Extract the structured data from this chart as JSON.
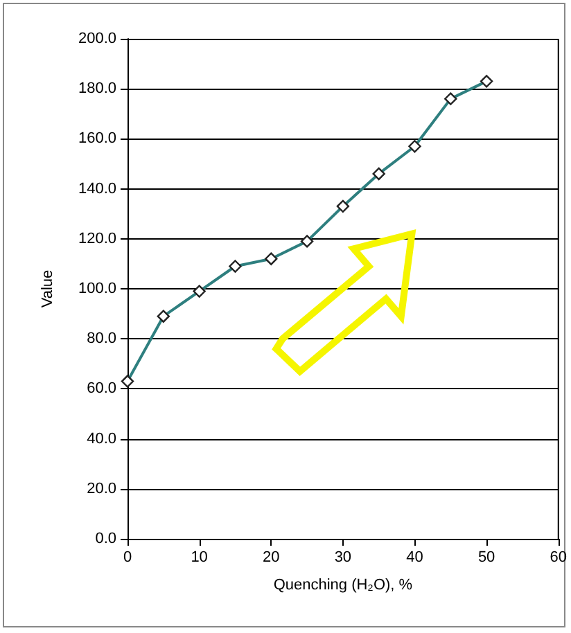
{
  "chart_data": {
    "type": "line",
    "xlabel": "Quenching (H₂O), %",
    "ylabel": "Value",
    "x": [
      0,
      5,
      10,
      15,
      20,
      25,
      30,
      35,
      40,
      45,
      50
    ],
    "series": [
      {
        "color": "#2e7f7f",
        "values": [
          63,
          89,
          99,
          109,
          112,
          119,
          133,
          146,
          157,
          176,
          183
        ]
      }
    ],
    "xlim": [
      0,
      60
    ],
    "xticks": [
      0,
      10,
      20,
      30,
      40,
      50,
      60
    ],
    "ylim": [
      0,
      200
    ],
    "yticks": [
      {
        "value": 0,
        "label": "0.0"
      },
      {
        "value": 20,
        "label": "20.0"
      },
      {
        "value": 40,
        "label": "40.0"
      },
      {
        "value": 60,
        "label": "60.0"
      },
      {
        "value": 80,
        "label": "80.0"
      },
      {
        "value": 100,
        "label": "100.0"
      },
      {
        "value": 120,
        "label": "120.0"
      },
      {
        "value": 140,
        "label": "140.0"
      },
      {
        "value": 160,
        "label": "160.0"
      },
      {
        "value": 180,
        "label": "180.0"
      },
      {
        "value": 200,
        "label": "200.0"
      }
    ],
    "grid": "y",
    "marker": "diamond",
    "line_style": "solid"
  }
}
